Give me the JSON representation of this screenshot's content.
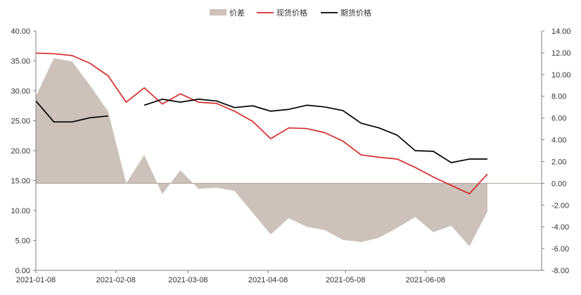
{
  "chart_data": {
    "type": "line",
    "legend": {
      "position": "top-center",
      "items": [
        {
          "label": "价差",
          "kind": "area",
          "color": "#cdc2bb"
        },
        {
          "label": "现货价格",
          "kind": "line",
          "color": "#d52b2b"
        },
        {
          "label": "期货价格",
          "kind": "line",
          "color": "#000000"
        }
      ]
    },
    "x_axis": {
      "type": "date",
      "range": [
        "2021-01-08",
        "2021-07-23"
      ],
      "ticks": [
        "2021-01-08",
        "2021-02-08",
        "2021-03-08",
        "2021-04-08",
        "2021-05-08",
        "2021-06-08"
      ]
    },
    "y_left": {
      "ylim": [
        0,
        40
      ],
      "ticks": [
        "0.00",
        "5.00",
        "10.00",
        "15.00",
        "20.00",
        "25.00",
        "30.00",
        "35.00",
        "40.00"
      ]
    },
    "y_right": {
      "ylim": [
        -8,
        14
      ],
      "ticks": [
        "-8.00",
        "-6.00",
        "-4.00",
        "-2.00",
        "0.00",
        "2.00",
        "4.00",
        "6.00",
        "8.00",
        "10.00",
        "12.00",
        "14.00"
      ]
    },
    "grid": false,
    "series": [
      {
        "name": "现货价格",
        "axis": "left",
        "color": "#d52b2b",
        "points": [
          [
            "2021-01-08",
            36.3
          ],
          [
            "2021-01-15",
            36.2
          ],
          [
            "2021-01-22",
            35.9
          ],
          [
            "2021-01-29",
            34.6
          ],
          [
            "2021-02-05",
            32.5
          ],
          [
            "2021-02-12",
            28.1
          ],
          [
            "2021-02-19",
            30.5
          ],
          [
            "2021-02-26",
            27.8
          ],
          [
            "2021-03-05",
            29.5
          ],
          [
            "2021-03-12",
            28.1
          ],
          [
            "2021-03-19",
            27.9
          ],
          [
            "2021-03-26",
            26.6
          ],
          [
            "2021-04-02",
            24.9
          ],
          [
            "2021-04-09",
            22.0
          ],
          [
            "2021-04-16",
            23.8
          ],
          [
            "2021-04-23",
            23.7
          ],
          [
            "2021-04-30",
            23.0
          ],
          [
            "2021-05-07",
            21.6
          ],
          [
            "2021-05-14",
            19.3
          ],
          [
            "2021-05-21",
            18.9
          ],
          [
            "2021-05-28",
            18.6
          ],
          [
            "2021-06-04",
            17.2
          ],
          [
            "2021-06-11",
            15.6
          ],
          [
            "2021-06-18",
            14.2
          ],
          [
            "2021-06-25",
            12.8
          ],
          [
            "2021-07-02",
            16.1
          ]
        ]
      },
      {
        "name": "期货价格",
        "axis": "left",
        "color": "#000000",
        "points": [
          [
            "2021-01-08",
            28.3
          ],
          [
            "2021-01-15",
            24.8
          ],
          [
            "2021-01-22",
            24.8
          ],
          [
            "2021-01-29",
            25.5
          ],
          [
            "2021-02-05",
            25.8
          ],
          [
            "2021-02-12",
            null
          ],
          [
            "2021-02-19",
            27.6
          ],
          [
            "2021-02-26",
            28.6
          ],
          [
            "2021-03-05",
            28.1
          ],
          [
            "2021-03-12",
            28.6
          ],
          [
            "2021-03-19",
            28.3
          ],
          [
            "2021-03-26",
            27.2
          ],
          [
            "2021-04-02",
            27.5
          ],
          [
            "2021-04-09",
            26.6
          ],
          [
            "2021-04-16",
            26.9
          ],
          [
            "2021-04-23",
            27.6
          ],
          [
            "2021-04-30",
            27.3
          ],
          [
            "2021-05-07",
            26.7
          ],
          [
            "2021-05-14",
            24.6
          ],
          [
            "2021-05-21",
            23.8
          ],
          [
            "2021-05-28",
            22.6
          ],
          [
            "2021-06-04",
            20.0
          ],
          [
            "2021-06-11",
            19.9
          ],
          [
            "2021-06-18",
            18.0
          ],
          [
            "2021-06-25",
            18.6
          ],
          [
            "2021-07-02",
            18.6
          ]
        ]
      },
      {
        "name": "价差",
        "axis": "right",
        "kind": "area",
        "color": "#cdc2bb",
        "points": [
          [
            "2021-01-08",
            8.0
          ],
          [
            "2021-01-15",
            11.5
          ],
          [
            "2021-01-22",
            11.2
          ],
          [
            "2021-01-29",
            9.0
          ],
          [
            "2021-02-05",
            6.6
          ],
          [
            "2021-02-12",
            0.0
          ],
          [
            "2021-02-19",
            2.6
          ],
          [
            "2021-02-26",
            -1.0
          ],
          [
            "2021-03-05",
            1.2
          ],
          [
            "2021-03-12",
            -0.5
          ],
          [
            "2021-03-19",
            -0.4
          ],
          [
            "2021-03-26",
            -0.7
          ],
          [
            "2021-04-02",
            -2.7
          ],
          [
            "2021-04-09",
            -4.7
          ],
          [
            "2021-04-16",
            -3.2
          ],
          [
            "2021-04-23",
            -4.0
          ],
          [
            "2021-04-30",
            -4.3
          ],
          [
            "2021-05-07",
            -5.2
          ],
          [
            "2021-05-14",
            -5.4
          ],
          [
            "2021-05-21",
            -5.0
          ],
          [
            "2021-05-28",
            -4.1
          ],
          [
            "2021-06-04",
            -3.1
          ],
          [
            "2021-06-11",
            -4.5
          ],
          [
            "2021-06-18",
            -3.9
          ],
          [
            "2021-06-25",
            -5.8
          ],
          [
            "2021-07-02",
            -2.6
          ]
        ]
      }
    ]
  }
}
